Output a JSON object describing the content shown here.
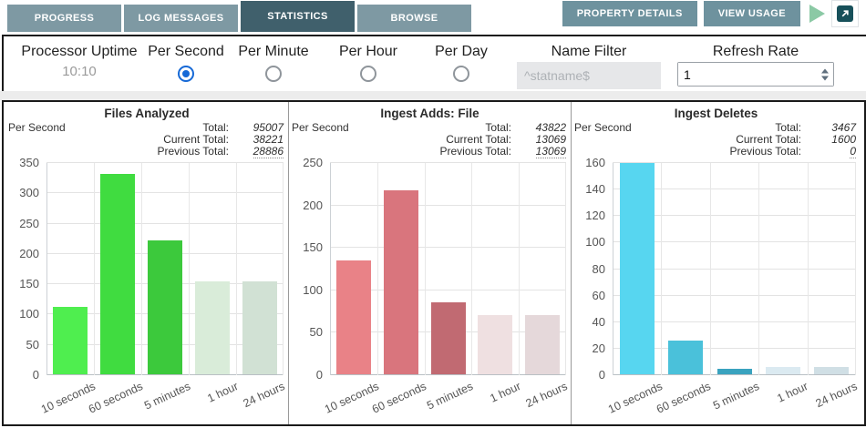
{
  "tabs": [
    {
      "label": "PROGRESS",
      "active": false
    },
    {
      "label": "LOG MESSAGES",
      "active": false
    },
    {
      "label": "STATISTICS",
      "active": true
    },
    {
      "label": "BROWSE",
      "active": false
    }
  ],
  "toolbar": {
    "property_details_label": "PROPERTY DETAILS",
    "view_usage_label": "VIEW USAGE",
    "icons": [
      "play-icon",
      "open-in-new-window-icon"
    ]
  },
  "filter_bar": {
    "uptime_label": "Processor Uptime",
    "uptime_value": "10:10",
    "radios": [
      {
        "label": "Per Second",
        "selected": true
      },
      {
        "label": "Per Minute",
        "selected": false
      },
      {
        "label": "Per Hour",
        "selected": false
      },
      {
        "label": "Per Day",
        "selected": false
      }
    ],
    "name_filter_label": "Name Filter",
    "name_filter_placeholder": "^statname$",
    "refresh_rate_label": "Refresh Rate",
    "refresh_rate_value": "1"
  },
  "totals_labels": {
    "total": "Total:",
    "current": "Current Total:",
    "previous": "Previous Total:"
  },
  "colors": {
    "tab_active": "#40606C",
    "tab_inactive": "#7E99A3",
    "toolbar_button": "#6E929E",
    "play_icon": "#8BC9A5",
    "popout_icon_bg": "#17505A",
    "radio_selected": "#1669D6",
    "panel_border": "#1A1A1A"
  },
  "chart_data": [
    {
      "type": "bar",
      "title": "Files Analyzed",
      "unit_label": "Per Second",
      "totals": {
        "total": "95007",
        "current_total": "38221",
        "previous_total": "28886"
      },
      "categories": [
        "10 seconds",
        "60 seconds",
        "5 minutes",
        "1 hour",
        "24 hours"
      ],
      "values": [
        113,
        332,
        222,
        154,
        154
      ],
      "bar_colors": [
        "#4FEE4F",
        "#40DC40",
        "#3CC93C",
        "#D9ECD9",
        "#D1E1D4"
      ],
      "ylim": [
        0,
        350
      ],
      "ytick_step": 50,
      "grid": true
    },
    {
      "type": "bar",
      "title": "Ingest Adds: File",
      "unit_label": "Per Second",
      "totals": {
        "total": "43822",
        "current_total": "13069",
        "previous_total": "13069"
      },
      "categories": [
        "10 seconds",
        "60 seconds",
        "5 minutes",
        "1 hour",
        "24 hours"
      ],
      "values": [
        135,
        218,
        86,
        71,
        71
      ],
      "bar_colors": [
        "#E98287",
        "#D9757D",
        "#C16A72",
        "#EFE0E1",
        "#E5D8DA"
      ],
      "ylim": [
        0,
        250
      ],
      "ytick_step": 50,
      "grid": true
    },
    {
      "type": "bar",
      "title": "Ingest Deletes",
      "unit_label": "Per Second",
      "totals": {
        "total": "3467",
        "current_total": "1600",
        "previous_total": "0"
      },
      "categories": [
        "10 seconds",
        "60 seconds",
        "5 minutes",
        "1 hour",
        "24 hours"
      ],
      "values": [
        160,
        26,
        5,
        6,
        6
      ],
      "bar_colors": [
        "#57D6F0",
        "#4AC1DA",
        "#3AA3BF",
        "#DBEAF1",
        "#D0DFE5"
      ],
      "ylim": [
        0,
        160
      ],
      "ytick_step": 20,
      "grid": true
    }
  ]
}
